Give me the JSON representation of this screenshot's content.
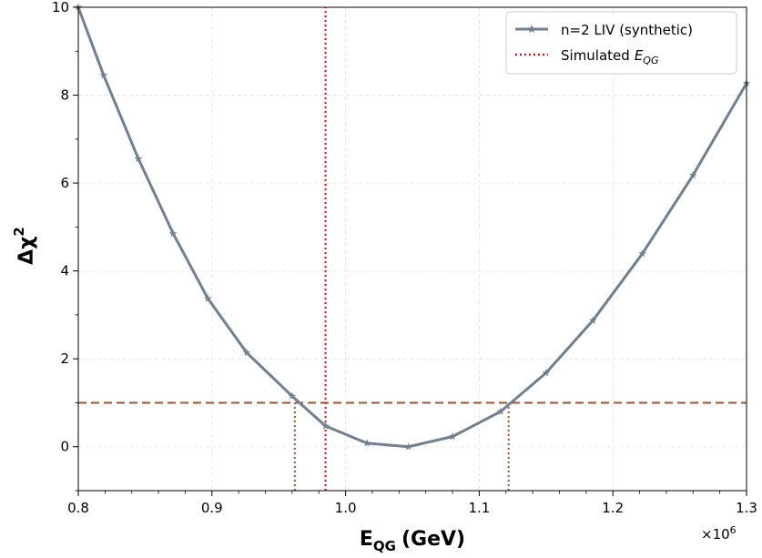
{
  "chart_data": {
    "type": "line",
    "x_scale_note": "×10",
    "x_scale_exp": "6",
    "xlabel": {
      "main": "E",
      "sub": "QG",
      "unit": "(GeV)"
    },
    "ylabel": {
      "main": "Δχ",
      "sup": "2"
    },
    "xlim": [
      0.8,
      1.3
    ],
    "ylim": [
      -1,
      10
    ],
    "x_ticks": [
      0.8,
      0.9,
      1.0,
      1.1,
      1.2,
      1.3
    ],
    "x_tick_labels": [
      "0.8",
      "0.9",
      "1.0",
      "1.1",
      "1.2",
      "1.3"
    ],
    "y_ticks": [
      0,
      2,
      4,
      6,
      8,
      10
    ],
    "y_tick_labels": [
      "0",
      "2",
      "4",
      "6",
      "8",
      "10"
    ],
    "grid": true,
    "legend_position": "top-right",
    "series": [
      {
        "name": "n=2 LIV (synthetic)",
        "color": "#708090",
        "marker": "star",
        "x": [
          0.8,
          0.819,
          0.845,
          0.871,
          0.897,
          0.926,
          0.96,
          0.985,
          1.016,
          1.047,
          1.08,
          1.116,
          1.15,
          1.185,
          1.222,
          1.26,
          1.3
        ],
        "y": [
          10.0,
          8.45,
          6.55,
          4.85,
          3.37,
          2.14,
          1.15,
          0.47,
          0.08,
          0.0,
          0.23,
          0.8,
          1.68,
          2.87,
          4.39,
          6.18,
          8.27
        ]
      }
    ],
    "reference_lines": [
      {
        "orientation": "vertical",
        "x": 0.985,
        "color": "#ff0000",
        "style": "dotted",
        "legend_label": "Simulated",
        "legend_math_main": "E",
        "legend_math_sub": "QG"
      },
      {
        "orientation": "horizontal",
        "y": 1.0,
        "color": "#a0522d",
        "style": "dashed"
      },
      {
        "orientation": "vertical",
        "x": 0.962,
        "y_range": [
          -1,
          1.0
        ],
        "color": "#a0522d",
        "style": "dotted"
      },
      {
        "orientation": "vertical",
        "x": 1.122,
        "y_range": [
          -1,
          1.0
        ],
        "color": "#a0522d",
        "style": "dotted"
      }
    ]
  }
}
